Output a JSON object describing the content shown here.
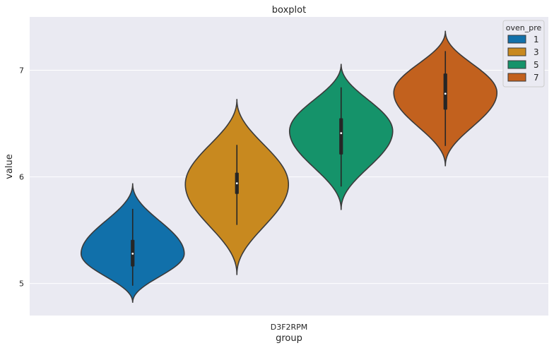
{
  "chart_data": {
    "type": "violin",
    "title": "boxplot",
    "xlabel": "group",
    "ylabel": "value",
    "categories": [
      "D3F2RPM"
    ],
    "ylim": [
      4.7,
      7.5
    ],
    "yticks": [
      5,
      6,
      7
    ],
    "grid": true,
    "legend": {
      "title": "oven_pre",
      "placement": "top-right"
    },
    "series": [
      {
        "name": "1",
        "color": "#1170aa",
        "min": 4.98,
        "q1": 5.16,
        "median": 5.28,
        "q3": 5.41,
        "max": 5.7,
        "kde_min": 4.82,
        "kde_max": 5.94,
        "mode": 5.28
      },
      {
        "name": "3",
        "color": "#c8891f",
        "min": 5.55,
        "q1": 5.84,
        "median": 5.94,
        "q3": 6.04,
        "max": 6.3,
        "kde_min": 5.08,
        "kde_max": 6.73,
        "mode": 5.93
      },
      {
        "name": "5",
        "color": "#15936a",
        "min": 5.91,
        "q1": 6.21,
        "median": 6.41,
        "q3": 6.55,
        "max": 6.84,
        "kde_min": 5.69,
        "kde_max": 7.06,
        "mode": 6.43
      },
      {
        "name": "7",
        "color": "#c2611e",
        "min": 6.29,
        "q1": 6.63,
        "median": 6.78,
        "q3": 6.97,
        "max": 7.18,
        "kde_min": 6.1,
        "kde_max": 7.37,
        "mode": 6.79
      }
    ]
  }
}
